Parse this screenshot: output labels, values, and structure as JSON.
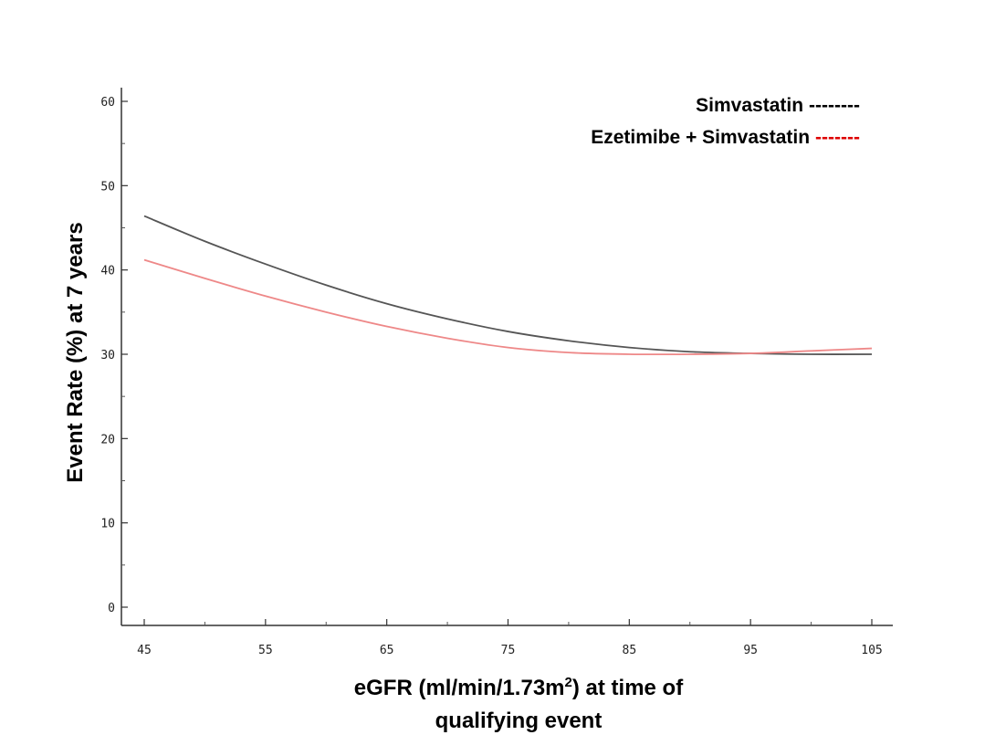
{
  "chart_data": {
    "type": "line",
    "title": "",
    "xlabel_line1": "eGFR (ml/min/1.73m",
    "xlabel_sup": "2",
    "xlabel_line1_end": ") at time of",
    "xlabel_line2": "qualifying event",
    "ylabel": "Event Rate (%) at 7 years",
    "xlim": [
      45,
      105
    ],
    "ylim": [
      0,
      60
    ],
    "x_ticks": [
      "45",
      "55",
      "65",
      "75",
      "85",
      "95",
      "105"
    ],
    "y_ticks": [
      "0",
      "10",
      "20",
      "30",
      "40",
      "50",
      "60"
    ],
    "grid": false,
    "legend_position": "top-right",
    "series": [
      {
        "name": "Simvastatin",
        "legend_dashes": "--------",
        "color": "#555555",
        "legend_dash_color": "#000000",
        "x": [
          45,
          50,
          55,
          60,
          65,
          70,
          75,
          80,
          85,
          90,
          95,
          100,
          105
        ],
        "y": [
          46.4,
          43.4,
          40.7,
          38.2,
          36.0,
          34.2,
          32.7,
          31.6,
          30.8,
          30.3,
          30.1,
          30.0,
          30.0
        ]
      },
      {
        "name": "Ezetimibe + Simvastatin",
        "legend_dashes": "-------",
        "color": "#ee8888",
        "legend_dash_color": "#dd0000",
        "x": [
          45,
          50,
          55,
          60,
          65,
          70,
          75,
          80,
          85,
          90,
          95,
          100,
          105
        ],
        "y": [
          41.2,
          39.0,
          36.9,
          35.0,
          33.3,
          31.9,
          30.8,
          30.2,
          30.0,
          30.0,
          30.1,
          30.4,
          30.7
        ]
      }
    ]
  }
}
